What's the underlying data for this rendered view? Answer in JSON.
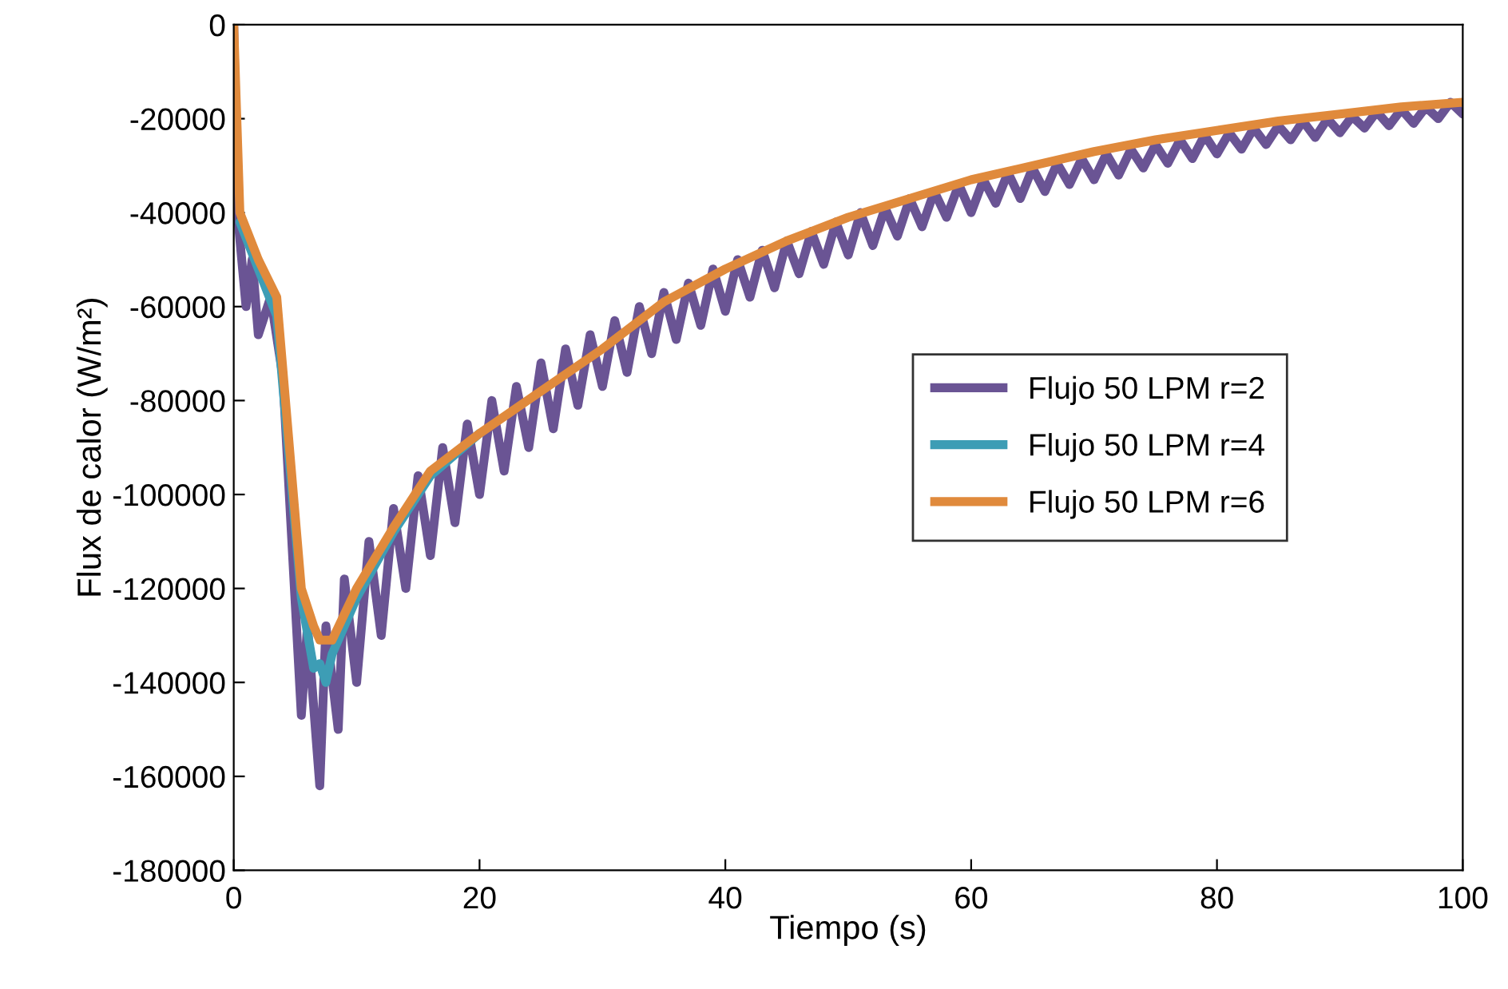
{
  "chart_data": {
    "type": "line",
    "xlabel": "Tiempo (s)",
    "ylabel": "Flux de calor (W/m²)",
    "xlim": [
      0,
      100
    ],
    "xticks": [
      0,
      20,
      40,
      60,
      80,
      100
    ],
    "ylim": [
      -180000,
      0
    ],
    "yticks": [
      -180000,
      -160000,
      -140000,
      -120000,
      -100000,
      -80000,
      -60000,
      -40000,
      -20000,
      0
    ],
    "grid": false,
    "legend": "right",
    "marker": "none",
    "line_style": "solid",
    "series": [
      {
        "name": "Flujo 50 LPM r=2",
        "color": "#6a5494",
        "x": [
          0,
          0.3,
          1,
          1.5,
          2,
          3,
          4,
          5.5,
          6,
          7,
          7.5,
          8.5,
          9,
          10,
          11,
          12,
          13,
          14,
          15,
          16,
          17,
          18,
          19,
          20,
          21,
          22,
          23,
          24,
          25,
          26,
          27,
          28,
          29,
          30,
          31,
          32,
          33,
          34,
          35,
          36,
          37,
          38,
          39,
          40,
          41,
          42,
          43,
          44,
          45,
          46,
          47,
          48,
          49,
          50,
          51,
          52,
          53,
          54,
          55,
          56,
          57,
          58,
          59,
          60,
          61,
          62,
          63,
          64,
          65,
          66,
          67,
          68,
          69,
          70,
          71,
          72,
          73,
          74,
          75,
          76,
          77,
          78,
          79,
          80,
          81,
          82,
          83,
          84,
          85,
          86,
          87,
          88,
          89,
          90,
          91,
          92,
          93,
          94,
          95,
          96,
          97,
          98,
          99,
          100
        ],
        "values": [
          0,
          -40000,
          -60000,
          -50000,
          -66000,
          -58000,
          -75000,
          -147000,
          -128000,
          -162000,
          -128000,
          -150000,
          -118000,
          -140000,
          -110000,
          -130000,
          -103000,
          -120000,
          -96000,
          -113000,
          -90000,
          -106000,
          -85000,
          -100000,
          -80000,
          -95000,
          -77000,
          -90000,
          -72000,
          -86000,
          -69000,
          -81000,
          -66000,
          -77000,
          -63000,
          -74000,
          -60000,
          -70000,
          -57000,
          -67000,
          -55000,
          -64000,
          -52000,
          -61000,
          -50000,
          -58000,
          -48000,
          -56000,
          -46000,
          -53000,
          -44000,
          -51000,
          -42000,
          -49000,
          -40000,
          -47000,
          -39000,
          -45000,
          -37000,
          -43000,
          -35500,
          -41000,
          -34000,
          -40000,
          -33000,
          -38000,
          -31500,
          -37000,
          -30500,
          -35500,
          -29500,
          -34000,
          -28500,
          -33000,
          -27500,
          -32000,
          -26500,
          -30500,
          -25500,
          -29500,
          -24500,
          -28500,
          -23500,
          -27500,
          -23000,
          -26500,
          -22000,
          -25500,
          -21500,
          -24500,
          -20500,
          -24000,
          -20000,
          -23000,
          -19500,
          -22000,
          -18500,
          -21500,
          -18000,
          -21000,
          -17500,
          -20000,
          -16500,
          -19000
        ]
      },
      {
        "name": "Flujo 50 LPM r=4",
        "color": "#3d9db5",
        "x": [
          0.5,
          2,
          3.5,
          5.5,
          6.5,
          7,
          7.5,
          8,
          10,
          13,
          16,
          20
        ],
        "values": [
          -42000,
          -52000,
          -62000,
          -122000,
          -137000,
          -136000,
          -140000,
          -134000,
          -122000,
          -108000,
          -96000,
          -87000
        ]
      },
      {
        "name": "Flujo 50 LPM r=6",
        "color": "#e08a3c",
        "x": [
          0,
          0.5,
          2,
          3.5,
          5.5,
          6.5,
          7,
          8,
          10,
          13,
          16,
          20,
          25,
          30,
          35,
          40,
          45,
          50,
          55,
          60,
          65,
          70,
          75,
          80,
          85,
          90,
          95,
          100
        ],
        "values": [
          0,
          -40000,
          -50000,
          -58000,
          -120000,
          -128000,
          -131000,
          -131000,
          -120000,
          -107000,
          -95000,
          -87000,
          -78000,
          -69000,
          -59000,
          -52000,
          -46000,
          -41000,
          -37000,
          -33000,
          -30000,
          -27000,
          -24500,
          -22500,
          -20500,
          -19000,
          -17500,
          -16500
        ]
      }
    ]
  }
}
